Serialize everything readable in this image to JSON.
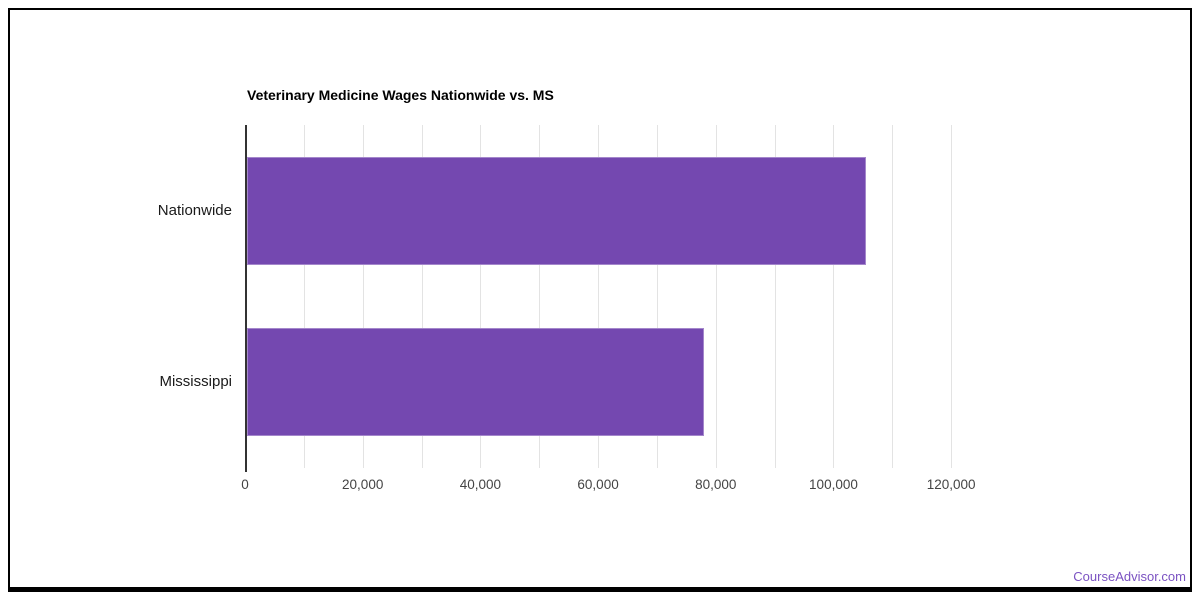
{
  "page": {
    "background": "#ffffff",
    "watermark": {
      "label": "CourseAdvisor.com",
      "color": "#7b52c2"
    }
  },
  "chart_data": {
    "type": "bar",
    "orientation": "horizontal",
    "title": "Veterinary Medicine Wages Nationwide vs. MS",
    "categories": [
      "Nationwide",
      "Mississippi"
    ],
    "values": [
      105250,
      77680
    ],
    "xlabel": "",
    "ylabel": "",
    "xlim": [
      0,
      130000
    ],
    "x_ticks": [
      0,
      20000,
      40000,
      60000,
      80000,
      100000,
      120000
    ],
    "x_tick_labels": [
      "0",
      "20,000",
      "40,000",
      "60,000",
      "80,000",
      "100,000",
      "120,000"
    ],
    "gridline_interval": 10000,
    "gridline_max": 120000,
    "grid": true,
    "legend": "none",
    "colors": {
      "bar": "#7448b0",
      "gridline": "#e3e3e3",
      "axis": "#333333",
      "title": "#000000",
      "tick_label": "#444444",
      "category_label": "#1a1a1a"
    }
  }
}
